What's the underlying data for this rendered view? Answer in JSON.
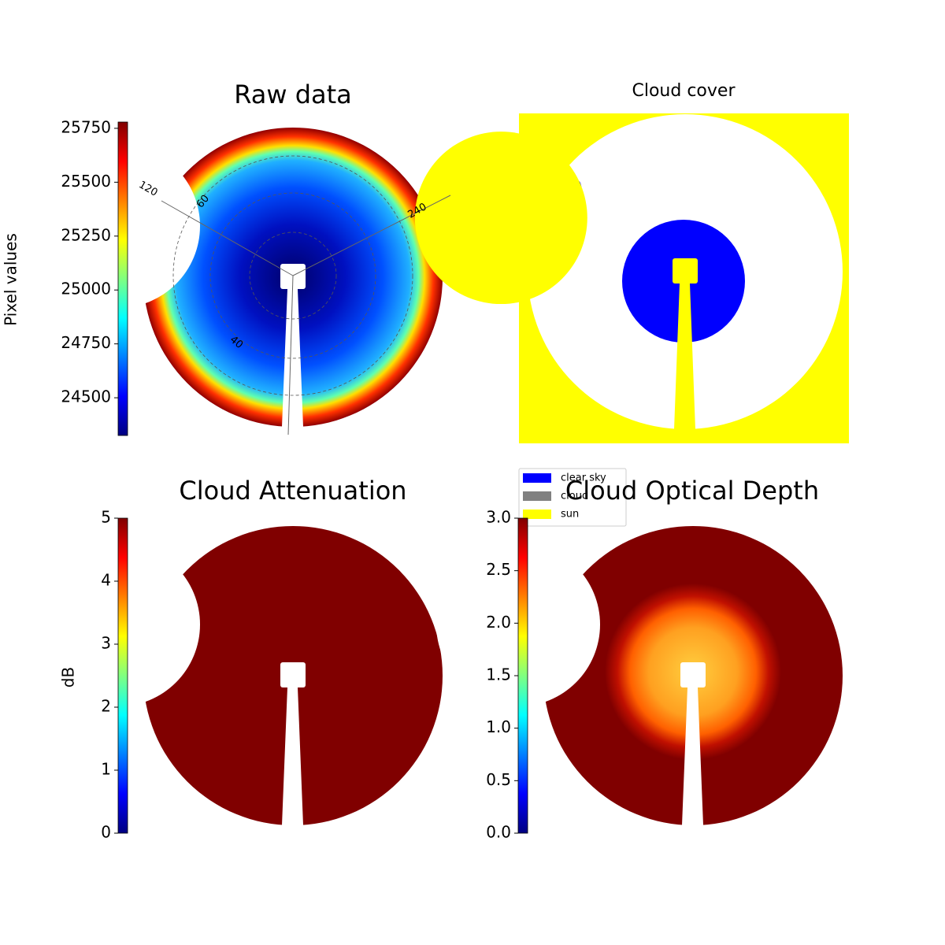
{
  "chart_data": [
    {
      "type": "image",
      "title": "Raw data",
      "colorbar_label": "Pixel values",
      "colormap": "jet",
      "ylim": [
        24325,
        25779
      ],
      "yticks": [
        24500,
        24750,
        25000,
        25250,
        25500,
        25750
      ],
      "annotations": [
        "120",
        "60",
        "240",
        "40"
      ]
    },
    {
      "type": "categorical-image",
      "title": "Cloud cover",
      "series": [
        {
          "name": "clear sky",
          "color": "#0000ff"
        },
        {
          "name": "cloud",
          "color": "#808080"
        },
        {
          "name": "sun",
          "color": "#ffff00"
        }
      ]
    },
    {
      "type": "image",
      "title": "Cloud Attenuation",
      "colorbar_label": "dB",
      "colormap": "jet",
      "ylim": [
        0,
        5
      ],
      "yticks": [
        0,
        1,
        2,
        3,
        4,
        5
      ]
    },
    {
      "type": "image",
      "title": "Cloud Optical Depth",
      "colormap": "jet",
      "ylim": [
        0,
        3
      ],
      "yticks": [
        {
          "value": 0,
          "label": "0.0"
        },
        0.5,
        {
          "value": 1,
          "label": "1.0"
        },
        1.5,
        {
          "value": 2,
          "label": "2.0"
        },
        2.5,
        {
          "value": 3,
          "label": "3.0"
        }
      ]
    }
  ]
}
